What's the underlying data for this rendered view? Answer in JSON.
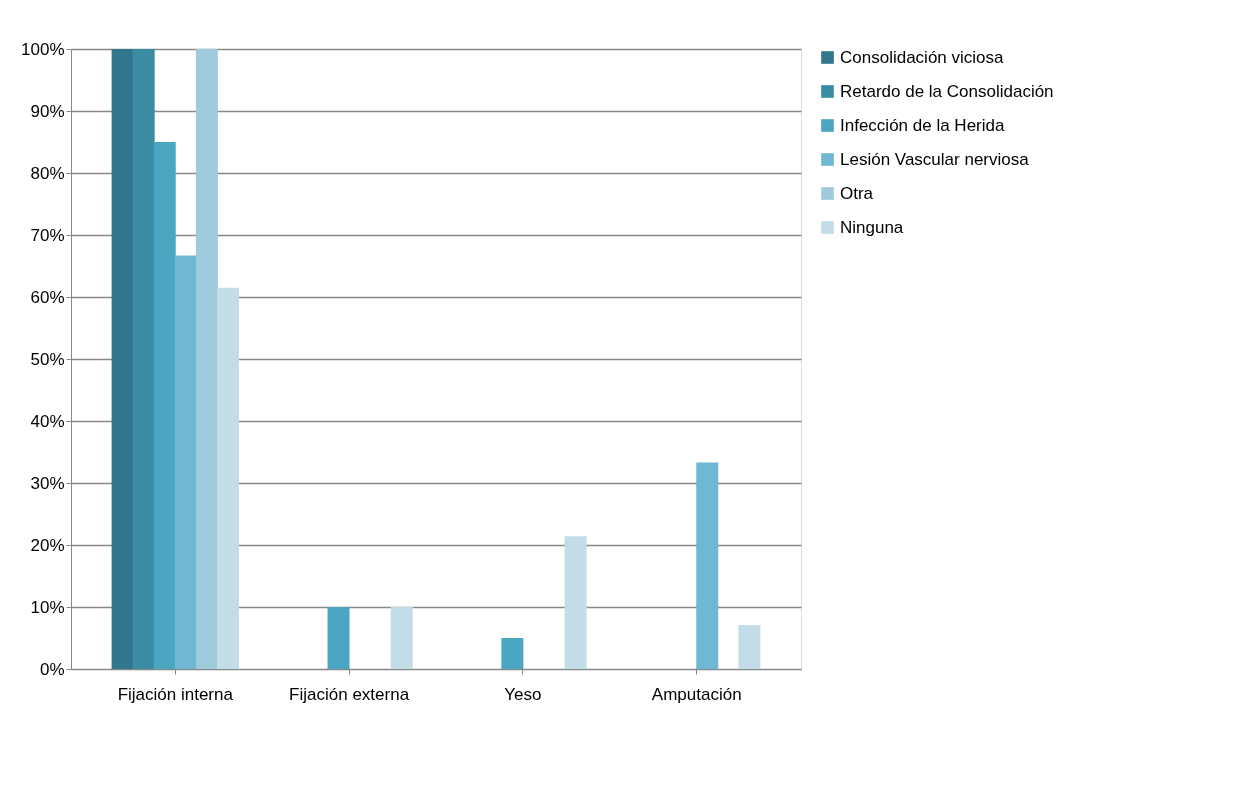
{
  "chart_data": {
    "type": "bar",
    "categories": [
      "Fijación interna",
      "Fijación externa",
      "Yeso",
      "Amputación"
    ],
    "series": [
      {
        "name": "Consolidación viciosa",
        "color": "#31768c",
        "values": [
          100,
          0,
          0,
          0
        ]
      },
      {
        "name": "Retardo de la Consolidación",
        "color": "#3a8ca5",
        "values": [
          100,
          0,
          0,
          0
        ]
      },
      {
        "name": "Infección de la Herida",
        "color": "#4aa6c1",
        "values": [
          85,
          10,
          5,
          0
        ]
      },
      {
        "name": "Lesión Vascular nerviosa",
        "color": "#6fb7d2",
        "values": [
          66.7,
          0,
          0,
          33.3
        ]
      },
      {
        "name": "Otra",
        "color": "#9fcadc",
        "values": [
          100,
          0,
          0,
          0
        ]
      },
      {
        "name": "Ninguna",
        "color": "#c3dde8",
        "values": [
          61.5,
          10,
          21.4,
          7.1
        ]
      }
    ],
    "ylim": [
      0,
      100
    ],
    "yticks": [
      {
        "value": 0,
        "label": "0%"
      },
      {
        "value": 10,
        "label": "10%"
      },
      {
        "value": 20,
        "label": "20%"
      },
      {
        "value": 30,
        "label": "30%"
      },
      {
        "value": 40,
        "label": "40%"
      },
      {
        "value": 50,
        "label": "50%"
      },
      {
        "value": 60,
        "label": "60%"
      },
      {
        "value": 70,
        "label": "70%"
      },
      {
        "value": 80,
        "label": "80%"
      },
      {
        "value": 90,
        "label": "90%"
      },
      {
        "value": 100,
        "label": "100%"
      }
    ],
    "grid": "y",
    "legend": "right"
  }
}
